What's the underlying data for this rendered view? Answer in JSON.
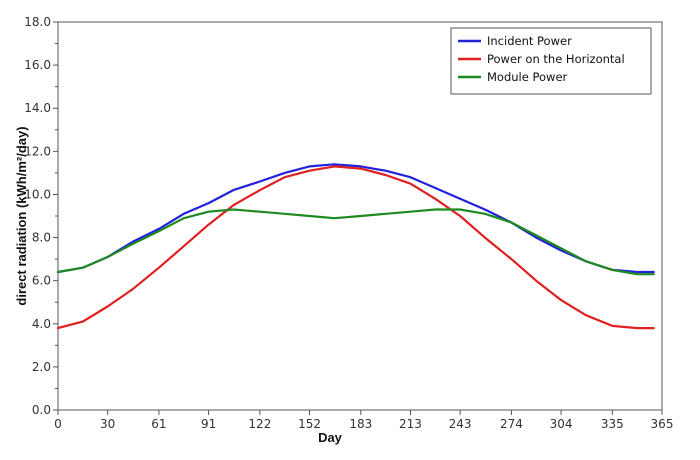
{
  "chart_data": {
    "type": "line",
    "title": "",
    "xlabel": "Day",
    "ylabel": "direct radiation (kWh/m²/day)",
    "xlim": [
      0,
      365
    ],
    "ylim": [
      0,
      18
    ],
    "xticks": [
      0,
      30,
      61,
      91,
      122,
      152,
      183,
      213,
      243,
      274,
      304,
      335,
      365
    ],
    "yticks": [
      0.0,
      2.0,
      4.0,
      6.0,
      8.0,
      10.0,
      12.0,
      14.0,
      16.0,
      18.0
    ],
    "grid": false,
    "legend_position": "top-right",
    "series": [
      {
        "name": "Incident Power",
        "color": "#2222dd",
        "x": [
          0,
          15,
          30,
          45,
          61,
          76,
          91,
          106,
          122,
          137,
          152,
          167,
          183,
          198,
          213,
          228,
          243,
          258,
          274,
          289,
          304,
          319,
          335,
          350,
          360
        ],
        "y": [
          6.4,
          6.6,
          7.1,
          7.8,
          8.4,
          9.1,
          9.6,
          10.2,
          10.6,
          11.0,
          11.3,
          11.4,
          11.3,
          11.1,
          10.8,
          10.3,
          9.8,
          9.3,
          8.7,
          8.0,
          7.4,
          6.9,
          6.5,
          6.4,
          6.4
        ]
      },
      {
        "name": "Power on the Horizontal",
        "color": "#e02020",
        "x": [
          0,
          15,
          30,
          45,
          61,
          76,
          91,
          106,
          122,
          137,
          152,
          167,
          183,
          198,
          213,
          228,
          243,
          258,
          274,
          289,
          304,
          319,
          335,
          350,
          360
        ],
        "y": [
          3.8,
          4.1,
          4.8,
          5.6,
          6.6,
          7.6,
          8.6,
          9.5,
          10.2,
          10.8,
          11.1,
          11.3,
          11.2,
          10.9,
          10.5,
          9.8,
          9.0,
          8.0,
          7.0,
          6.0,
          5.1,
          4.4,
          3.9,
          3.8,
          3.8
        ]
      },
      {
        "name": "Module Power",
        "color": "#1f8a1f",
        "x": [
          0,
          15,
          30,
          45,
          61,
          76,
          91,
          106,
          122,
          137,
          152,
          167,
          183,
          198,
          213,
          228,
          243,
          258,
          274,
          289,
          304,
          319,
          335,
          350,
          360
        ],
        "y": [
          6.4,
          6.6,
          7.1,
          7.7,
          8.3,
          8.9,
          9.2,
          9.3,
          9.2,
          9.1,
          9.0,
          8.9,
          9.0,
          9.1,
          9.2,
          9.3,
          9.3,
          9.1,
          8.7,
          8.1,
          7.5,
          6.9,
          6.5,
          6.3,
          6.3
        ]
      }
    ]
  }
}
